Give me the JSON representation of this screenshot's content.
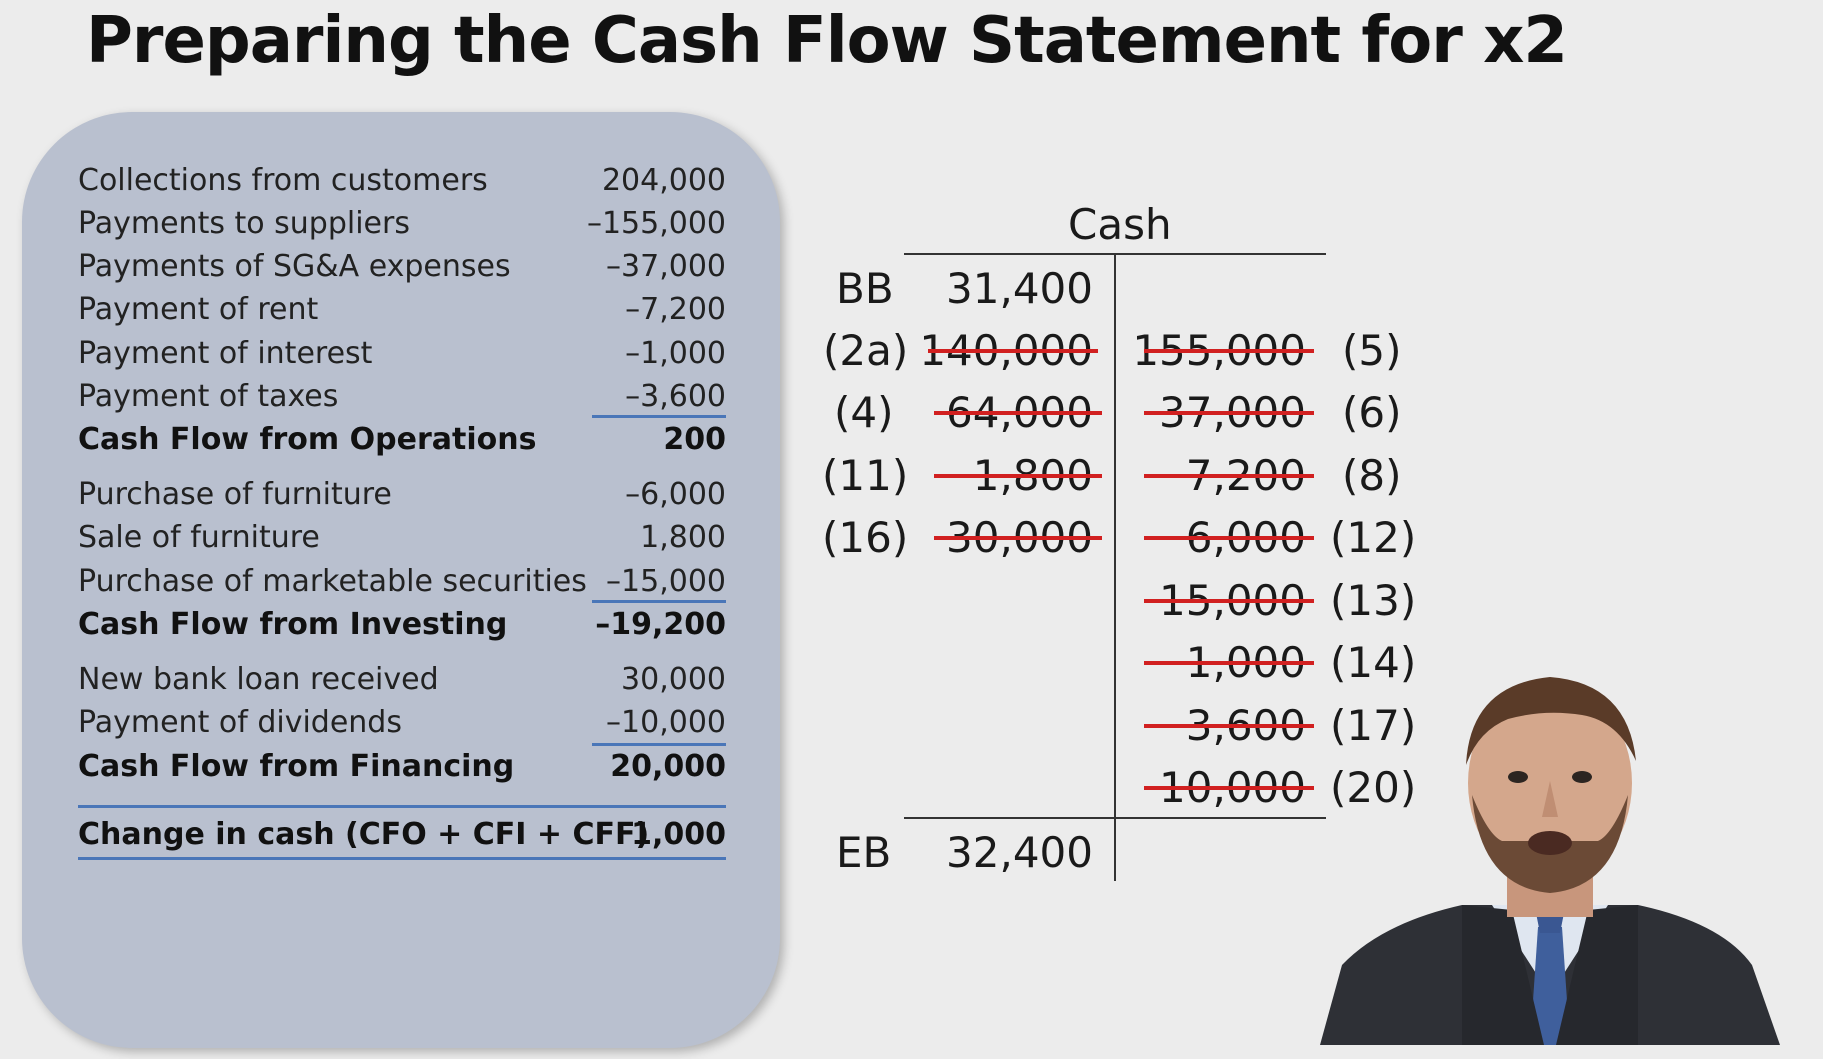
{
  "title": "Preparing the Cash Flow Statement for x2",
  "statement": {
    "rows": [
      {
        "label": "Collections from customers",
        "value": "204,000"
      },
      {
        "label": "Payments to suppliers",
        "value": "–155,000"
      },
      {
        "label": "Payments of SG&A expenses",
        "value": "–37,000"
      },
      {
        "label": "Payment of rent",
        "value": "–7,200"
      },
      {
        "label": "Payment of interest",
        "value": "–1,000"
      },
      {
        "label": "Payment of taxes",
        "value": "–3,600"
      },
      {
        "label": "Cash Flow from Operations",
        "value": "200"
      },
      {
        "label": "Purchase of furniture",
        "value": "–6,000"
      },
      {
        "label": "Sale of furniture",
        "value": "1,800"
      },
      {
        "label": "Purchase of marketable securities",
        "value": "–15,000"
      },
      {
        "label": "Cash Flow from Investing",
        "value": "–19,200"
      },
      {
        "label": "New bank loan received",
        "value": "30,000"
      },
      {
        "label": "Payment of dividends",
        "value": "–10,000"
      },
      {
        "label": "Cash Flow from Financing",
        "value": "20,000"
      },
      {
        "label": "Change in cash (CFO + CFI + CFF)",
        "value": "1,000"
      }
    ]
  },
  "t_account": {
    "title": "Cash",
    "bb_label": "BB",
    "bb_value": "31,400",
    "debits": [
      {
        "ref": "(2a)",
        "amount": "140,000"
      },
      {
        "ref": "(4)",
        "amount": "64,000"
      },
      {
        "ref": "(11)",
        "amount": "1,800"
      },
      {
        "ref": "(16)",
        "amount": "30,000"
      }
    ],
    "credits": [
      {
        "ref": "(5)",
        "amount": "155,000"
      },
      {
        "ref": "(6)",
        "amount": "37,000"
      },
      {
        "ref": "(8)",
        "amount": "7,200"
      },
      {
        "ref": "(12)",
        "amount": "6,000"
      },
      {
        "ref": "(13)",
        "amount": "15,000"
      },
      {
        "ref": "(14)",
        "amount": "1,000"
      },
      {
        "ref": "(17)",
        "amount": "3,600"
      },
      {
        "ref": "(20)",
        "amount": "10,000"
      }
    ],
    "eb_label": "EB",
    "eb_value": "32,400"
  },
  "colors": {
    "panel": "#b9c0cf",
    "underline": "#4a76b8",
    "strike": "#d12020"
  }
}
